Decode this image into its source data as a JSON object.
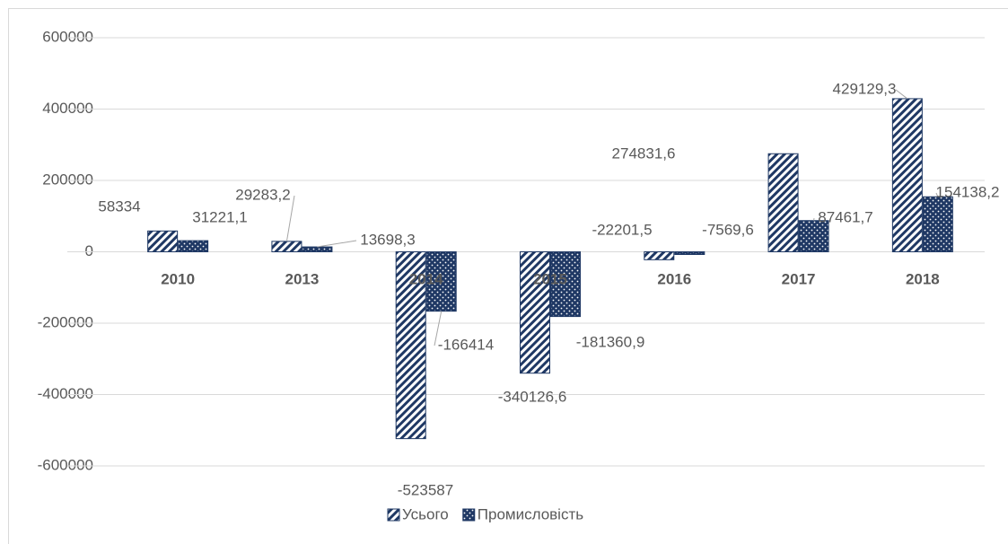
{
  "chart_data": {
    "type": "bar",
    "categories": [
      "2010",
      "2013",
      "2014",
      "2015",
      "2016",
      "2017",
      "2018"
    ],
    "series": [
      {
        "name": "Усього",
        "color": "#1f3864",
        "pattern": "diagonal",
        "values": [
          58334,
          29283.2,
          -523587,
          -340126.6,
          -22201.5,
          274831.6,
          429129.3
        ],
        "value_labels": [
          "58334",
          "29283,2",
          "-523587",
          "-340126,6",
          "-22201,5",
          "274831,6",
          "429129,3"
        ]
      },
      {
        "name": "Промисловість",
        "color": "#1f3864",
        "pattern": "dots",
        "values": [
          31221.1,
          13698.3,
          -166414,
          -181360.9,
          -7569.6,
          87461.7,
          154138.2
        ],
        "value_labels": [
          "31221,1",
          "13698,3",
          "-166414",
          "-181360,9",
          "-7569,6",
          "87461,7",
          "154138,2"
        ]
      }
    ],
    "ylim": [
      -600000,
      600000
    ],
    "yticks": [
      600000,
      400000,
      200000,
      0,
      -200000,
      -400000,
      -600000
    ],
    "grid": true,
    "legend": "bottom"
  }
}
